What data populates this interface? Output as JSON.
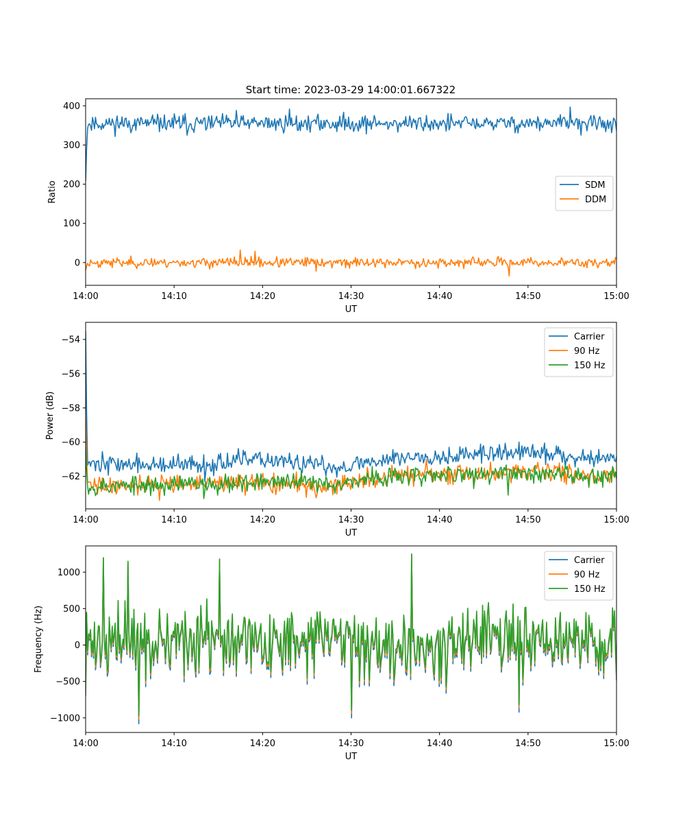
{
  "figure": {
    "title": "Start time: 2023-03-29 14:00:01.667322"
  },
  "chart_data": [
    {
      "type": "line",
      "xlabel": "UT",
      "ylabel": "Ratio",
      "x_tick_labels": [
        "14:00",
        "14:10",
        "14:20",
        "14:30",
        "14:40",
        "14:50",
        "15:00"
      ],
      "x_range_minutes": [
        0,
        60
      ],
      "ylim": [
        -58,
        418
      ],
      "yticks": [
        0,
        100,
        200,
        300,
        400
      ],
      "legend": "center-right",
      "series": [
        {
          "name": "SDM",
          "color": "#1f77b4",
          "start": 208,
          "mean": 355,
          "amp": 14,
          "spikes": [
            [
              23.0,
              392
            ],
            [
              54.8,
              397
            ],
            [
              17.0,
              388
            ],
            [
              11.5,
              325
            ]
          ],
          "seed": 11
        },
        {
          "name": "DDM",
          "color": "#ff7f0e",
          "start": -20,
          "mean": 0,
          "amp": 8,
          "spikes": [
            [
              17.5,
              32
            ],
            [
              19.1,
              29
            ],
            [
              47.9,
              -34
            ],
            [
              26.1,
              -22
            ]
          ],
          "seed": 23
        }
      ]
    },
    {
      "type": "line",
      "xlabel": "UT",
      "ylabel": "Power (dB)",
      "x_tick_labels": [
        "14:00",
        "14:10",
        "14:20",
        "14:30",
        "14:40",
        "14:50",
        "15:00"
      ],
      "x_range_minutes": [
        0,
        60
      ],
      "ylim": [
        -63.9,
        -53.0
      ],
      "yticks": [
        -62,
        -60,
        -58,
        -56,
        -54
      ],
      "legend": "top-right",
      "series": [
        {
          "name": "Carrier",
          "color": "#1f77b4",
          "start": -53.5,
          "profile": [
            [
              0,
              -61.2
            ],
            [
              10,
              -61.4
            ],
            [
              20,
              -61.0
            ],
            [
              28,
              -61.5
            ],
            [
              35,
              -60.9
            ],
            [
              45,
              -60.7
            ],
            [
              50,
              -60.6
            ],
            [
              60,
              -61.0
            ]
          ],
          "amp": 0.35,
          "spikes": [
            [
              49.0,
              -60.0
            ],
            [
              13.5,
              -62.3
            ]
          ],
          "seed": 37
        },
        {
          "name": "90 Hz",
          "color": "#ff7f0e",
          "start": -58.5,
          "profile": [
            [
              0,
              -62.6
            ],
            [
              10,
              -62.4
            ],
            [
              20,
              -62.4
            ],
            [
              28,
              -62.6
            ],
            [
              35,
              -61.9
            ],
            [
              45,
              -61.9
            ],
            [
              50,
              -61.7
            ],
            [
              60,
              -62.0
            ]
          ],
          "amp": 0.35,
          "spikes": [
            [
              8.3,
              -63.4
            ],
            [
              38.5,
              -61.0
            ]
          ],
          "seed": 41
        },
        {
          "name": "150 Hz",
          "color": "#2ca02c",
          "start": -60.3,
          "profile": [
            [
              0,
              -62.6
            ],
            [
              10,
              -62.5
            ],
            [
              20,
              -62.3
            ],
            [
              28,
              -62.4
            ],
            [
              35,
              -62.0
            ],
            [
              45,
              -61.9
            ],
            [
              50,
              -61.8
            ],
            [
              60,
              -62.0
            ]
          ],
          "amp": 0.35,
          "spikes": [
            [
              13.4,
              -63.3
            ],
            [
              47.7,
              -63.1
            ]
          ],
          "seed": 53
        }
      ]
    },
    {
      "type": "line",
      "xlabel": "UT",
      "ylabel": "Frequency (Hz)",
      "x_tick_labels": [
        "14:00",
        "14:10",
        "14:20",
        "14:30",
        "14:40",
        "14:50",
        "15:00"
      ],
      "x_range_minutes": [
        0,
        60
      ],
      "ylim": [
        -1200,
        1360
      ],
      "yticks": [
        -1000,
        -500,
        0,
        500,
        1000
      ],
      "legend": "top-right",
      "base": {
        "amp": 380,
        "seed": 71,
        "spikes": [
          [
            2.0,
            1200
          ],
          [
            36.9,
            1250
          ],
          [
            6.0,
            -1080
          ],
          [
            15.1,
            1180
          ],
          [
            30.0,
            -1000
          ],
          [
            4.8,
            1150
          ],
          [
            49.0,
            -920
          ]
        ]
      },
      "series": [
        {
          "name": "Carrier",
          "color": "#1f77b4",
          "offset": 0,
          "scale": 1.0
        },
        {
          "name": "90 Hz",
          "color": "#ff7f0e",
          "offset": 30,
          "scale": 0.97
        },
        {
          "name": "150 Hz",
          "color": "#2ca02c",
          "offset": 55,
          "scale": 0.95
        }
      ]
    }
  ]
}
